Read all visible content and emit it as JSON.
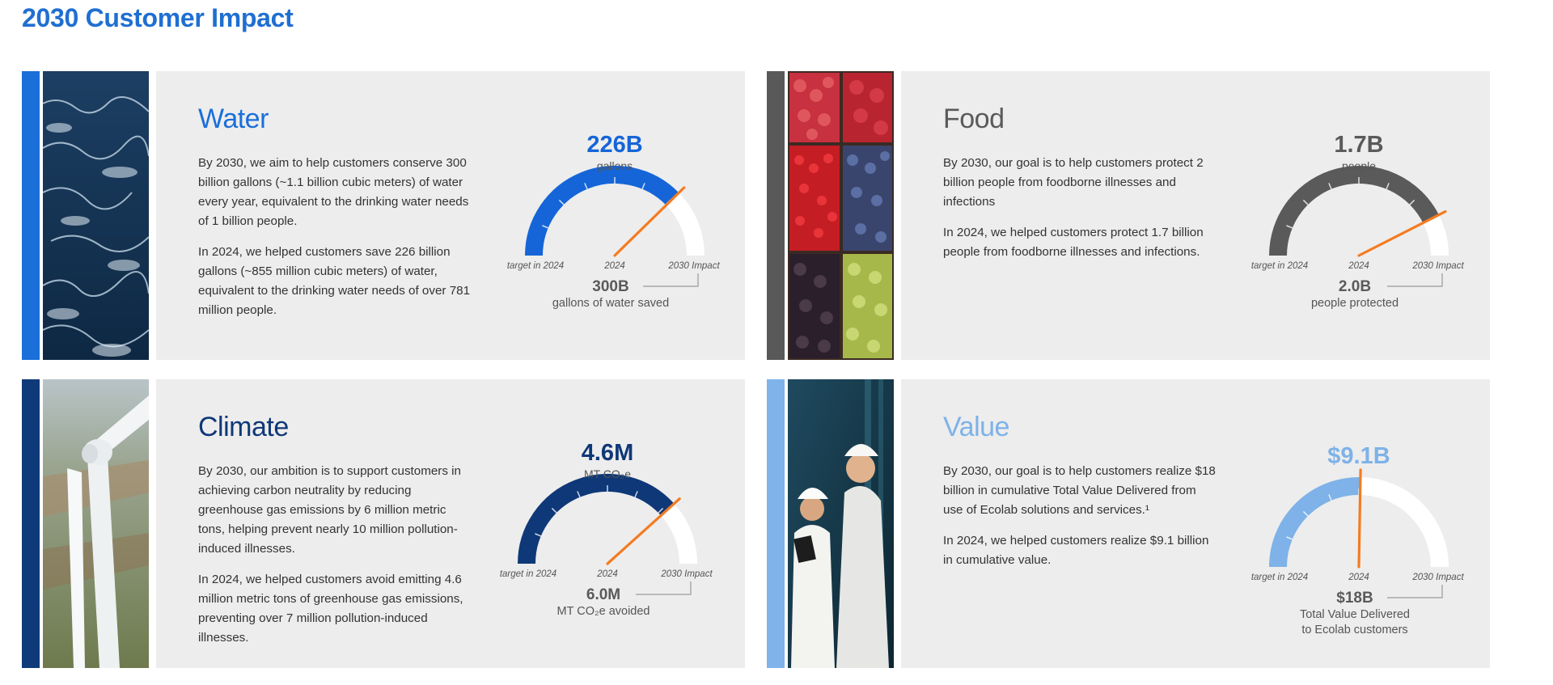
{
  "page": {
    "title": "2030 Customer Impact"
  },
  "panels": {
    "water": {
      "heading": "Water",
      "para1": "By 2030, we aim to help customers conserve 300 billion gallons (~1.1 billion cubic meters) of water every year, equivalent to the drinking water needs of 1 billion people.",
      "para2": "In 2024, we helped customers save 226 billion gallons (~855 million cubic meters) of water, equivalent to the drinking water needs of over 781 million people.",
      "gauge": {
        "value_text": "226B",
        "unit": "gallons",
        "labels": {
          "left": "target in 2024",
          "center": "2024",
          "right": "2030 Impact"
        },
        "target_text": "300B",
        "target_desc": [
          "gallons of water saved"
        ],
        "value": 226,
        "max": 300,
        "accent_color": "#1565d8"
      }
    },
    "food": {
      "heading": "Food",
      "para1": "By 2030, our goal is to help customers protect 2 billion people from foodborne illnesses and infections",
      "para2": "In 2024, we helped customers protect 1.7 billion people from foodborne illnesses and infections.",
      "gauge": {
        "value_text": "1.7B",
        "unit": "people",
        "labels": {
          "left": "target in 2024",
          "center": "2024",
          "right": "2030 Impact"
        },
        "target_text": "2.0B",
        "target_desc": [
          "people protected"
        ],
        "value": 1.7,
        "max": 2.0,
        "accent_color": "#5a5a5a"
      }
    },
    "climate": {
      "heading": "Climate",
      "para1": "By 2030, our ambition is to support customers in achieving carbon neutrality by reducing greenhouse gas emissions by 6 million metric tons, helping prevent nearly 10 million pollution-induced illnesses.",
      "para2": "In 2024, we helped customers avoid emitting 4.6 million metric tons of greenhouse gas emissions, preventing over 7 million pollution-induced illnesses.",
      "gauge": {
        "value_text": "4.6M",
        "unit": "MT CO₂e",
        "labels": {
          "left": "target in 2024",
          "center": "2024",
          "right": "2030 Impact"
        },
        "target_text": "6.0M",
        "target_desc": [
          "MT CO₂e avoided"
        ],
        "value": 4.6,
        "max": 6.0,
        "accent_color": "#0f3878"
      }
    },
    "value": {
      "heading": "Value",
      "para1": "By 2030, our goal is to help customers realize $18 billion in cumulative Total Value Delivered from use of Ecolab solutions and services.¹",
      "para2": "In 2024, we helped customers realize $9.1 billion in cumulative value.",
      "gauge": {
        "value_text": "$9.1B",
        "unit": "",
        "labels": {
          "left": "target in 2024",
          "center": "2024",
          "right": "2030 Impact"
        },
        "target_text": "$18B",
        "target_desc": [
          "Total Value Delivered",
          "to Ecolab customers"
        ],
        "value": 9.1,
        "max": 18,
        "accent_color": "#7eb2e8"
      }
    }
  },
  "colors": {
    "title": "#1f6fd1",
    "water_stripe": "#1a6fd9",
    "food_stripe": "#595959",
    "climate_stripe": "#0f3a7a",
    "value_stripe": "#7fb3ea",
    "needle": "#f47b20",
    "track": "#ffffff",
    "card_bg": "#ededed"
  },
  "images": {
    "water": "ocean-waves-photo",
    "food": "berries-in-crates-photo",
    "climate": "wind-turbine-photo",
    "value": "engineers-in-hard-hats-photo"
  }
}
